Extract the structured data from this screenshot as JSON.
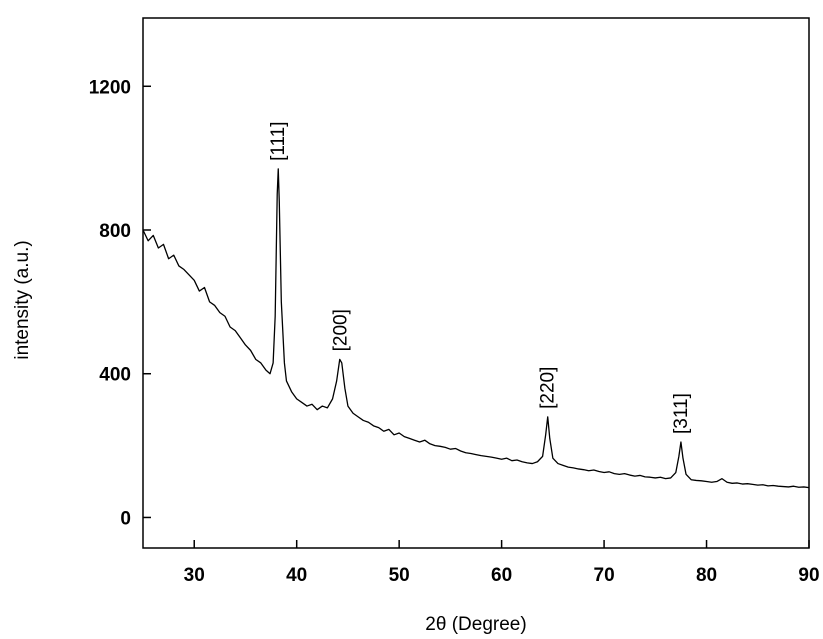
{
  "chart_data": {
    "type": "line",
    "xlabel": "2θ (Degree)",
    "ylabel": "intensity (a.u.)",
    "xlim": [
      25,
      90
    ],
    "ylim": [
      -85,
      1390
    ],
    "xticks": [
      30,
      40,
      50,
      60,
      70,
      80,
      90
    ],
    "yticks": [
      0,
      400,
      800,
      1200
    ],
    "x": [
      25,
      25.5,
      26,
      26.5,
      27,
      27.5,
      28,
      28.5,
      29,
      29.5,
      30,
      30.5,
      31,
      31.5,
      32,
      32.5,
      33,
      33.5,
      34,
      34.5,
      35,
      35.5,
      36,
      36.5,
      37,
      37.4,
      37.7,
      37.9,
      38.1,
      38.2,
      38.3,
      38.5,
      38.8,
      39,
      39.5,
      40,
      40.5,
      41,
      41.5,
      42,
      42.5,
      43,
      43.5,
      43.9,
      44.2,
      44.4,
      44.7,
      45,
      45.5,
      46,
      46.5,
      47,
      47.5,
      48,
      48.5,
      49,
      49.5,
      50,
      50.5,
      51,
      51.5,
      52,
      52.5,
      53,
      53.5,
      54,
      54.5,
      55,
      55.5,
      56,
      56.5,
      57,
      57.5,
      58,
      58.5,
      59,
      59.5,
      60,
      60.5,
      61,
      61.5,
      62,
      62.5,
      63,
      63.5,
      64,
      64.3,
      64.5,
      64.7,
      65,
      65.5,
      66,
      66.5,
      67,
      67.5,
      68,
      68.5,
      69,
      69.5,
      70,
      70.5,
      71,
      71.5,
      72,
      72.5,
      73,
      73.5,
      74,
      74.5,
      75,
      75.5,
      76,
      76.5,
      77,
      77.3,
      77.5,
      77.7,
      78,
      78.5,
      79,
      79.5,
      80,
      80.5,
      81,
      81.5,
      82,
      82.5,
      83,
      83.5,
      84,
      84.5,
      85,
      85.5,
      86,
      86.5,
      87,
      87.5,
      88,
      88.5,
      89,
      89.5,
      90
    ],
    "series": [
      {
        "color": "#000000",
        "values": [
          800,
          770,
          785,
          750,
          760,
          720,
          730,
          700,
          690,
          675,
          660,
          630,
          640,
          600,
          590,
          570,
          560,
          530,
          520,
          500,
          480,
          465,
          440,
          430,
          410,
          400,
          430,
          560,
          900,
          970,
          880,
          600,
          430,
          380,
          350,
          330,
          320,
          310,
          315,
          300,
          310,
          305,
          330,
          380,
          440,
          430,
          360,
          310,
          290,
          280,
          270,
          265,
          255,
          250,
          240,
          245,
          230,
          235,
          225,
          220,
          215,
          210,
          215,
          205,
          200,
          198,
          195,
          190,
          192,
          185,
          180,
          178,
          175,
          172,
          170,
          168,
          165,
          162,
          165,
          158,
          160,
          155,
          152,
          150,
          155,
          170,
          230,
          280,
          220,
          165,
          150,
          145,
          140,
          138,
          135,
          133,
          130,
          132,
          128,
          125,
          127,
          122,
          120,
          122,
          118,
          115,
          117,
          113,
          112,
          110,
          112,
          108,
          110,
          125,
          170,
          210,
          165,
          120,
          105,
          103,
          102,
          100,
          98,
          100,
          108,
          98,
          95,
          96,
          93,
          94,
          92,
          90,
          91,
          88,
          89,
          87,
          86,
          85,
          87,
          84,
          85,
          83
        ]
      }
    ],
    "peaks": [
      {
        "label": "[111]",
        "x": 38.2,
        "y": 970
      },
      {
        "label": "[200]",
        "x": 44.3,
        "y": 440
      },
      {
        "label": "[220]",
        "x": 64.5,
        "y": 280
      },
      {
        "label": "[311]",
        "x": 77.5,
        "y": 210
      }
    ]
  }
}
